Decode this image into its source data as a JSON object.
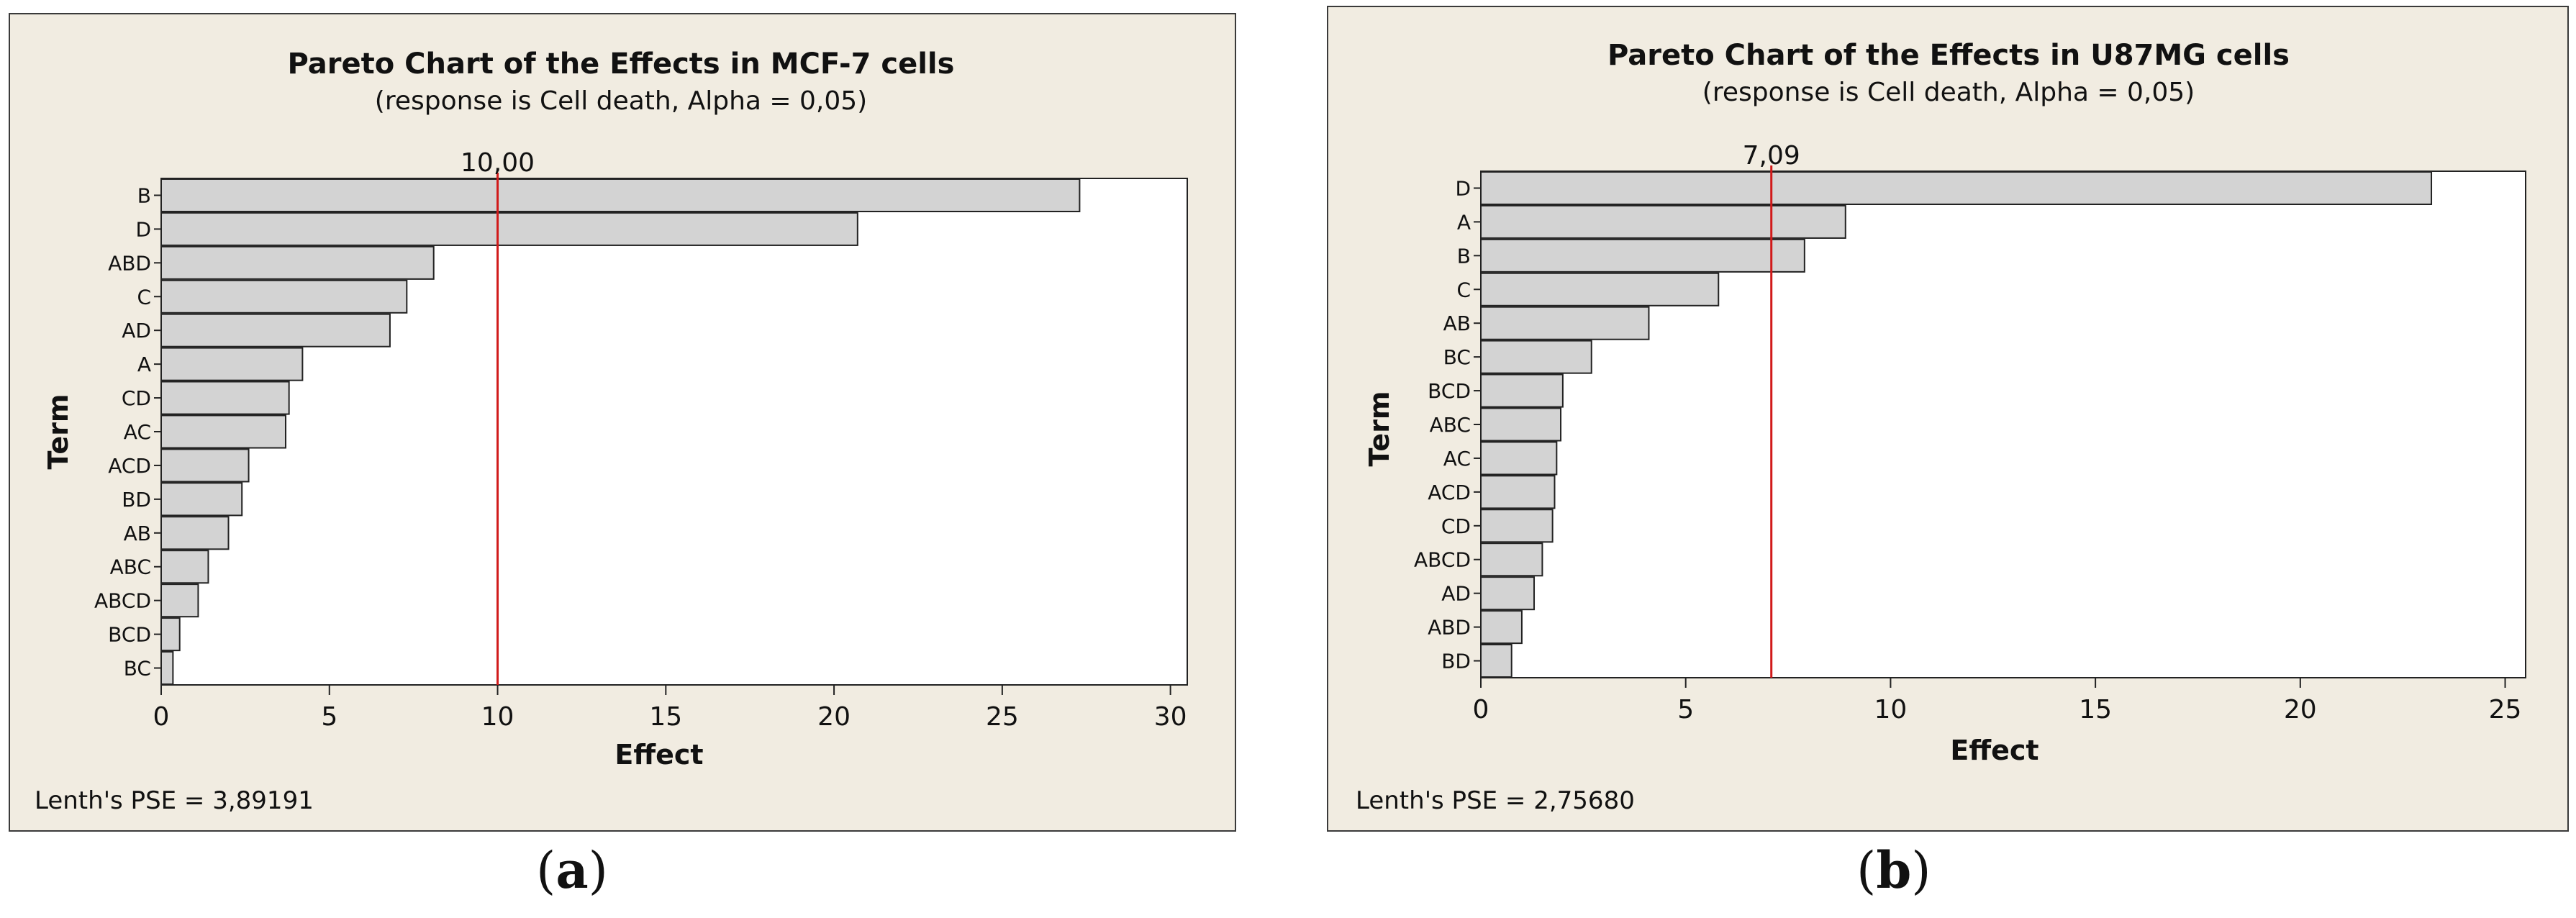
{
  "chart_data": [
    {
      "type": "bar",
      "orientation": "horizontal",
      "title": "Pareto Chart of the Effects in MCF-7 cells",
      "subtitle": "(response is Cell death, Alpha = 0,05)",
      "xlabel": "Effect",
      "ylabel": "Term",
      "xlim": [
        0,
        30.5
      ],
      "xticks": [
        0,
        5,
        10,
        15,
        20,
        25,
        30
      ],
      "reference_value": 10.0,
      "reference_label": "10,00",
      "categories": [
        "B",
        "D",
        "ABD",
        "C",
        "AD",
        "A",
        "CD",
        "AC",
        "ACD",
        "BD",
        "AB",
        "ABC",
        "ABCD",
        "BCD",
        "BC"
      ],
      "values": [
        27.3,
        20.7,
        8.1,
        7.3,
        6.8,
        4.2,
        3.8,
        3.7,
        2.6,
        2.4,
        2.0,
        1.4,
        1.1,
        0.55,
        0.35
      ],
      "footnote": "Lenth's PSE = 3,89191",
      "caption_letter": "a"
    },
    {
      "type": "bar",
      "orientation": "horizontal",
      "title": "Pareto Chart of the Effects in U87MG cells",
      "subtitle": "(response is Cell death, Alpha = 0,05)",
      "xlabel": "Effect",
      "ylabel": "Term",
      "xlim": [
        0,
        25.5
      ],
      "xticks": [
        0,
        5,
        10,
        15,
        20,
        25
      ],
      "reference_value": 7.09,
      "reference_label": "7,09",
      "categories": [
        "D",
        "A",
        "B",
        "C",
        "AB",
        "BC",
        "BCD",
        "ABC",
        "AC",
        "ACD",
        "CD",
        "ABCD",
        "AD",
        "ABD",
        "BD"
      ],
      "values": [
        23.2,
        8.9,
        7.9,
        5.8,
        4.1,
        2.7,
        2.0,
        1.95,
        1.85,
        1.8,
        1.75,
        1.5,
        1.3,
        1.0,
        0.75
      ],
      "footnote": "Lenth's PSE = 2,75680",
      "caption_letter": "b"
    }
  ],
  "colors": {
    "panel_bg": "#f1ece1",
    "plot_bg": "#ffffff",
    "bar_fill": "#d3d3d3",
    "bar_stroke": "#222222",
    "reference_line": "#d11a1a"
  }
}
